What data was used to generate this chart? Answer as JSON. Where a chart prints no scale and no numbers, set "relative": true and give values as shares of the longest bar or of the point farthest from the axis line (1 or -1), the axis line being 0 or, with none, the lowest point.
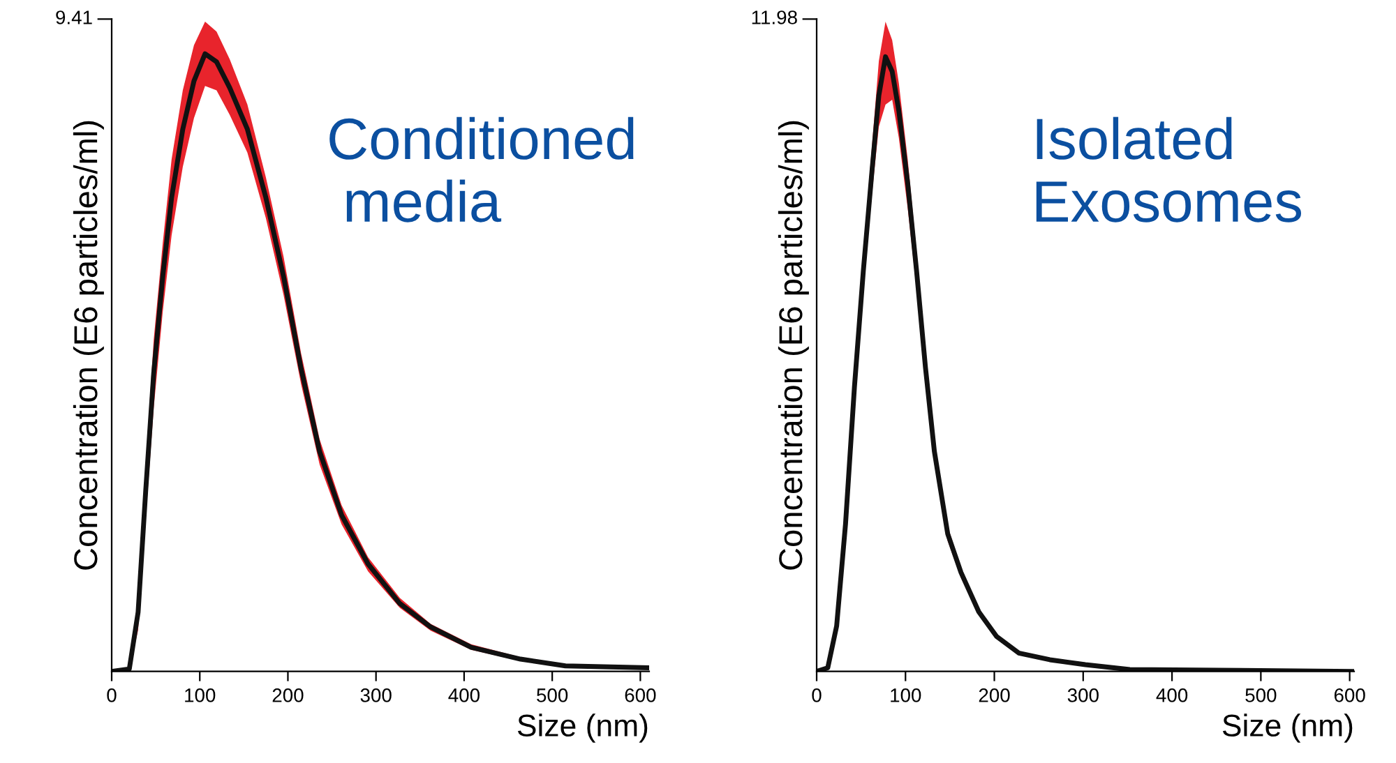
{
  "chart_data": [
    {
      "type": "line",
      "xlabel": "Size (nm)",
      "ylabel": "Concentration (E6 particles/ml)",
      "annotations": [
        "9.41",
        "Conditioned\n media"
      ],
      "relative": true,
      "xlim": [
        0,
        610
      ],
      "xticks": [
        0,
        100,
        200,
        300,
        400,
        500,
        600
      ],
      "marker": "none",
      "line_style": "solid",
      "series": [
        {
          "color": "#111111",
          "x": [
            0,
            20,
            30,
            38.6,
            47.7,
            58,
            68,
            80.7,
            93.4,
            106,
            119,
            134,
            154,
            175,
            195,
            215,
            236,
            261,
            291,
            327,
            362,
            408,
            464,
            515,
            610
          ],
          "values": [
            0,
            0.004,
            0.096,
            0.292,
            0.483,
            0.64,
            0.767,
            0.878,
            0.956,
            1,
            0.987,
            0.945,
            0.878,
            0.767,
            0.64,
            0.49,
            0.356,
            0.253,
            0.174,
            0.11,
            0.072,
            0.039,
            0.02,
            0.009,
            0.006
          ],
          "upper": [
            0,
            0.006,
            0.123,
            0.335,
            0.537,
            0.694,
            0.829,
            0.941,
            1.014,
            1.052,
            1.036,
            0.991,
            0.918,
            0.8,
            0.672,
            0.515,
            0.376,
            0.269,
            0.185,
            0.119,
            0.077,
            0.044,
            0.023,
            0.012,
            0.007
          ],
          "lower": [
            0,
            0.002,
            0.067,
            0.246,
            0.426,
            0.583,
            0.706,
            0.817,
            0.896,
            0.948,
            0.941,
            0.901,
            0.84,
            0.734,
            0.61,
            0.465,
            0.335,
            0.238,
            0.162,
            0.103,
            0.066,
            0.035,
            0.017,
            0.006,
            0.005
          ]
        }
      ]
    },
    {
      "type": "line",
      "xlabel": "Size (nm)",
      "ylabel": "Concentration (E6 particles/ml)",
      "annotations": [
        "11.98",
        "Isolated\nExosomes"
      ],
      "relative": true,
      "xlim": [
        0,
        605
      ],
      "xticks": [
        0,
        100,
        200,
        300,
        400,
        500,
        600
      ],
      "marker": "none",
      "line_style": "solid",
      "series": [
        {
          "color": "#111111",
          "x": [
            0,
            12.5,
            22.5,
            32.5,
            42.5,
            52.5,
            62.5,
            70,
            77.5,
            85,
            92.5,
            102.5,
            112.5,
            122.5,
            132.5,
            147.5,
            162.5,
            182.5,
            202.5,
            227.5,
            262.5,
            302.5,
            352.5,
            452.5,
            604.5
          ],
          "values": [
            0,
            0.006,
            0.074,
            0.24,
            0.462,
            0.651,
            0.818,
            0.937,
            1,
            0.976,
            0.912,
            0.794,
            0.651,
            0.494,
            0.358,
            0.224,
            0.161,
            0.097,
            0.057,
            0.03,
            0.019,
            0.011,
            0.003,
            0.002,
            0
          ],
          "upper": [
            0,
            0.008,
            0.089,
            0.261,
            0.487,
            0.682,
            0.859,
            0.993,
            1.057,
            1.027,
            0.957,
            0.833,
            0.682,
            0.518,
            0.376,
            0.236,
            0.168,
            0.103,
            0.061,
            0.033,
            0.02,
            0.012,
            0.004,
            0.003,
            0
          ],
          "lower": [
            0,
            0.004,
            0.062,
            0.222,
            0.434,
            0.621,
            0.78,
            0.886,
            0.922,
            0.93,
            0.868,
            0.753,
            0.621,
            0.469,
            0.341,
            0.212,
            0.152,
            0.092,
            0.054,
            0.027,
            0.017,
            0.01,
            0.003,
            0.001,
            0
          ]
        }
      ]
    }
  ]
}
